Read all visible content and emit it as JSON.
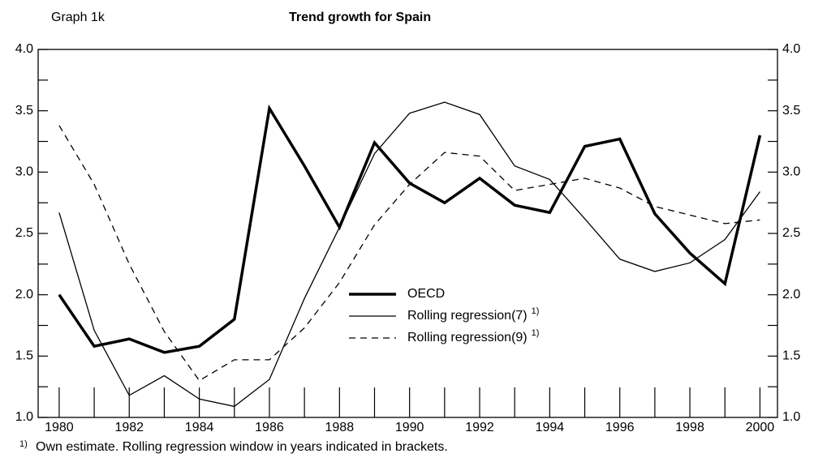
{
  "chart_data": {
    "type": "line",
    "graph_label": "Graph 1k",
    "title": "Trend growth for Spain",
    "x": [
      1980,
      1981,
      1982,
      1983,
      1984,
      1985,
      1986,
      1987,
      1988,
      1989,
      1990,
      1991,
      1992,
      1993,
      1994,
      1995,
      1996,
      1997,
      1998,
      1999,
      2000
    ],
    "xlim": [
      1979.4,
      2000.5
    ],
    "xticks": [
      1980,
      1982,
      1984,
      1986,
      1988,
      1990,
      1992,
      1994,
      1996,
      1998,
      2000
    ],
    "xminorticks": [
      1981,
      1983,
      1985,
      1987,
      1989,
      1991,
      1993,
      1995,
      1997,
      1999
    ],
    "ylim": [
      1,
      4
    ],
    "yticks": [
      {
        "value": 1,
        "label": "1.0"
      },
      1.5,
      {
        "value": 2,
        "label": "2.0"
      },
      2.5,
      {
        "value": 3,
        "label": "3.0"
      },
      3.5,
      {
        "value": 4,
        "label": "4.0"
      }
    ],
    "yminorticks": [
      1.25,
      1.75,
      2.25,
      2.75,
      3.25,
      3.75
    ],
    "right_axis_mirror": true,
    "series": [
      {
        "name": "OECD",
        "color": "#000000",
        "width": 3.5,
        "dash": "solid",
        "values": [
          2.0,
          1.58,
          1.64,
          1.53,
          1.58,
          1.8,
          3.52,
          3.05,
          2.55,
          3.24,
          2.91,
          2.75,
          2.95,
          2.73,
          2.67,
          3.21,
          3.27,
          2.66,
          2.34,
          2.09,
          3.3
        ]
      },
      {
        "name": "Rolling regression(7)",
        "legend_note": "1)",
        "color": "#000000",
        "width": 1.3,
        "dash": "solid",
        "values": [
          2.67,
          1.71,
          1.18,
          1.34,
          1.15,
          1.09,
          1.31,
          1.97,
          2.55,
          3.15,
          3.48,
          3.57,
          3.47,
          3.05,
          2.94,
          2.62,
          2.29,
          2.19,
          2.26,
          2.45,
          2.84
        ]
      },
      {
        "name": "Rolling regression(9)",
        "legend_note": "1)",
        "color": "#000000",
        "width": 1.3,
        "dash": "dashed",
        "values": [
          3.38,
          2.9,
          2.25,
          1.7,
          1.3,
          1.47,
          1.47,
          1.73,
          2.1,
          2.57,
          2.9,
          3.16,
          3.13,
          2.85,
          2.9,
          2.95,
          2.87,
          2.72,
          2.65,
          2.58,
          2.61
        ]
      }
    ],
    "footnote": {
      "marker": "1)",
      "text": "Own estimate. Rolling regression window in years indicated in brackets."
    }
  }
}
